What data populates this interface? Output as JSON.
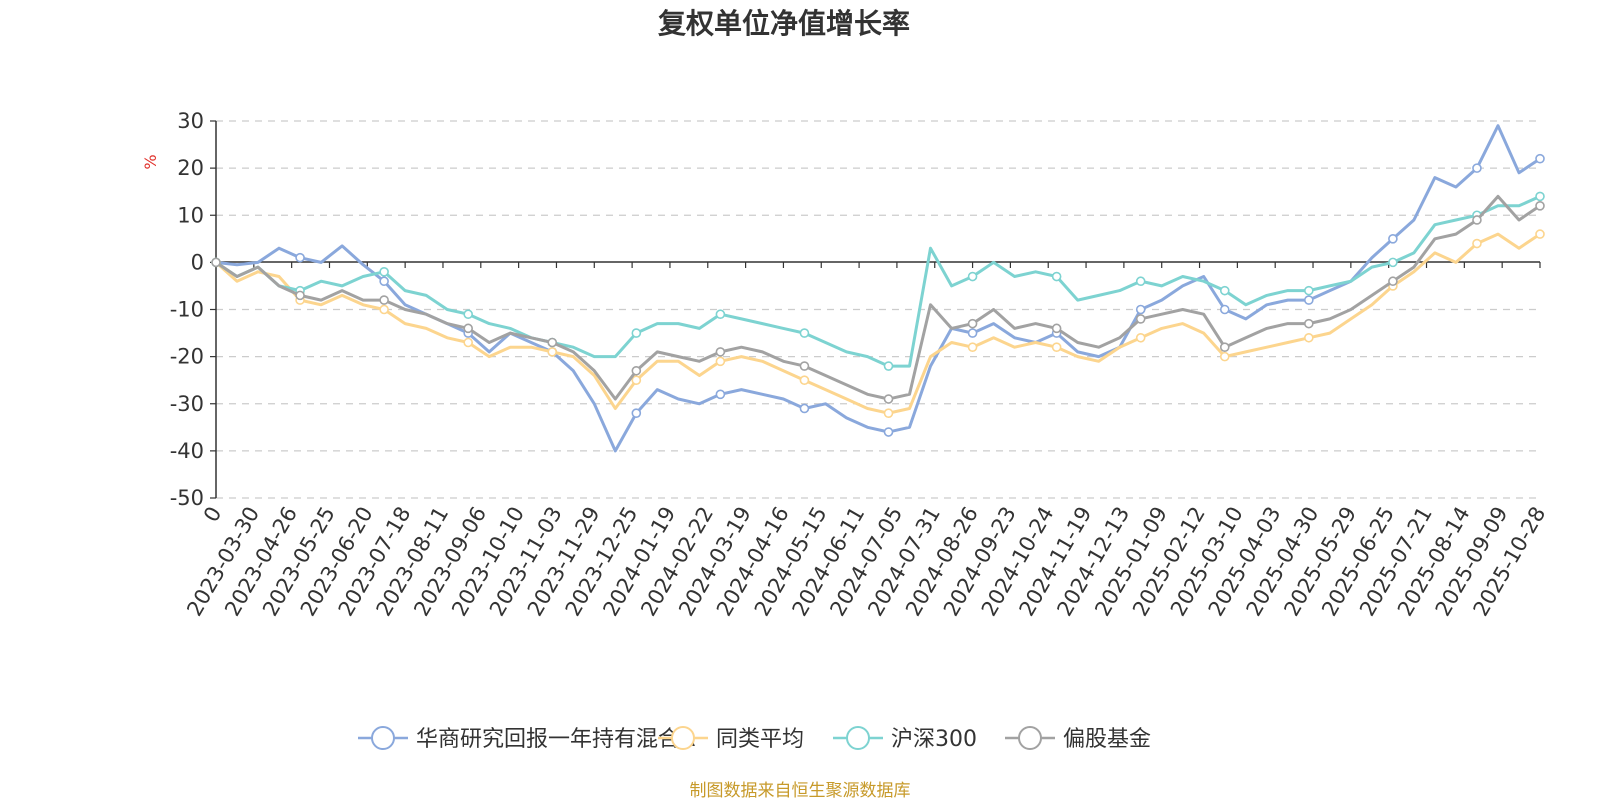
{
  "chart_data": {
    "type": "line",
    "title": "复权单位净值增长率",
    "ylabel": "%",
    "ylim": [
      -50,
      30
    ],
    "yticks": [
      30,
      20,
      10,
      0,
      -10,
      -20,
      -30,
      -40,
      -50
    ],
    "grid": "dashed horizontal",
    "legend": "bottom-center",
    "x_ticks": [
      "0",
      "2023-03-30",
      "2023-04-26",
      "2023-05-25",
      "2023-06-20",
      "2023-07-18",
      "2023-08-11",
      "2023-09-06",
      "2023-10-10",
      "2023-11-03",
      "2023-11-29",
      "2023-12-25",
      "2024-01-19",
      "2024-02-22",
      "2024-03-19",
      "2024-04-16",
      "2024-05-15",
      "2024-06-11",
      "2024-07-05",
      "2024-07-31",
      "2024-08-26",
      "2024-09-23",
      "2024-10-24",
      "2024-11-19",
      "2024-12-13",
      "2025-01-09",
      "2025-02-12",
      "2025-03-10",
      "2025-04-03",
      "2025-04-30",
      "2025-05-29",
      "2025-06-25",
      "2025-07-21",
      "2025-08-14",
      "2025-09-09",
      "2025-10-28"
    ],
    "series": [
      {
        "name": "华商研究回报一年持有混合A",
        "color": "#8aa8dc",
        "values": [
          0,
          -0.5,
          0,
          3,
          1,
          0,
          3.5,
          -0.5,
          -4,
          -9,
          -11,
          -13,
          -15,
          -19,
          -15,
          -17,
          -19,
          -23,
          -30,
          -40,
          -32,
          -27,
          -29,
          -30,
          -28,
          -27,
          -28,
          -29,
          -31,
          -30,
          -33,
          -35,
          -36,
          -35,
          -22,
          -14,
          -15,
          -13,
          -16,
          -17,
          -15,
          -19,
          -20,
          -18,
          -10,
          -8,
          -5,
          -3,
          -10,
          -12,
          -9,
          -8,
          -8,
          -6,
          -4,
          1,
          5,
          9,
          18,
          16,
          20,
          29,
          19,
          22
        ]
      },
      {
        "name": "同类平均",
        "color": "#fcd58e",
        "values": [
          0,
          -4,
          -2,
          -3,
          -8,
          -9,
          -7,
          -9,
          -10,
          -13,
          -14,
          -16,
          -17,
          -20,
          -18,
          -18,
          -19,
          -20,
          -24,
          -31,
          -25,
          -21,
          -21,
          -24,
          -21,
          -20,
          -21,
          -23,
          -25,
          -27,
          -29,
          -31,
          -32,
          -31,
          -20,
          -17,
          -18,
          -16,
          -18,
          -17,
          -18,
          -20,
          -21,
          -18,
          -16,
          -14,
          -13,
          -15,
          -20,
          -19,
          -18,
          -17,
          -16,
          -15,
          -12,
          -9,
          -5,
          -2,
          2,
          0,
          4,
          6,
          3,
          6
        ]
      },
      {
        "name": "沪深300",
        "color": "#7dd3d1",
        "values": [
          0,
          -3,
          -1,
          -5,
          -6,
          -4,
          -5,
          -3,
          -2,
          -6,
          -7,
          -10,
          -11,
          -13,
          -14,
          -16,
          -17,
          -18,
          -20,
          -20,
          -15,
          -13,
          -13,
          -14,
          -11,
          -12,
          -13,
          -14,
          -15,
          -17,
          -19,
          -20,
          -22,
          -22,
          3,
          -5,
          -3,
          0,
          -3,
          -2,
          -3,
          -8,
          -7,
          -6,
          -4,
          -5,
          -3,
          -4,
          -6,
          -9,
          -7,
          -6,
          -6,
          -5,
          -4,
          -1,
          0,
          2,
          8,
          9,
          10,
          12,
          12,
          14
        ]
      },
      {
        "name": "偏股基金",
        "color": "#a2a2a2",
        "values": [
          0,
          -3,
          -1,
          -5,
          -7,
          -8,
          -6,
          -8,
          -8,
          -10,
          -11,
          -13,
          -14,
          -17,
          -15,
          -16,
          -17,
          -19,
          -23,
          -29,
          -23,
          -19,
          -20,
          -21,
          -19,
          -18,
          -19,
          -21,
          -22,
          -24,
          -26,
          -28,
          -29,
          -28,
          -9,
          -14,
          -13,
          -10,
          -14,
          -13,
          -14,
          -17,
          -18,
          -16,
          -12,
          -11,
          -10,
          -11,
          -18,
          -16,
          -14,
          -13,
          -13,
          -12,
          -10,
          -7,
          -4,
          -1,
          5,
          6,
          9,
          14,
          9,
          12
        ]
      }
    ],
    "source": "制图数据来自恒生聚源数据库"
  }
}
